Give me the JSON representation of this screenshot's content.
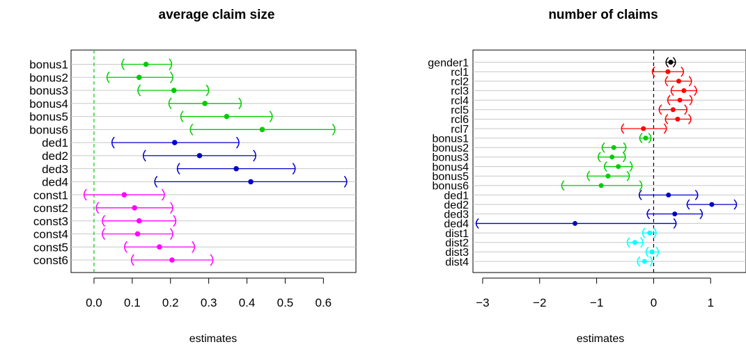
{
  "chart_data": [
    {
      "type": "forest",
      "title": "average claim size",
      "xlabel": "estimates",
      "ylabel": "",
      "xlim": [
        -0.06,
        0.685
      ],
      "xticks": [
        "0.0",
        "0.1",
        "0.2",
        "0.3",
        "0.4",
        "0.5",
        "0.6"
      ],
      "xtick_values": [
        0.0,
        0.1,
        0.2,
        0.3,
        0.4,
        0.5,
        0.6
      ],
      "reference_line": {
        "x": 0,
        "style": "dashed",
        "color": "#00cc00"
      },
      "grid": "horizontal",
      "series": [
        {
          "color": "#00cc00",
          "points": [
            {
              "label": "bonus1",
              "estimate": 0.136,
              "lower": 0.072,
              "upper": 0.204
            },
            {
              "label": "bonus2",
              "estimate": 0.118,
              "lower": 0.033,
              "upper": 0.207
            },
            {
              "label": "bonus3",
              "estimate": 0.209,
              "lower": 0.114,
              "upper": 0.301
            },
            {
              "label": "bonus4",
              "estimate": 0.29,
              "lower": 0.195,
              "upper": 0.386
            },
            {
              "label": "bonus5",
              "estimate": 0.347,
              "lower": 0.226,
              "upper": 0.467
            },
            {
              "label": "bonus6",
              "estimate": 0.44,
              "lower": 0.251,
              "upper": 0.631
            }
          ]
        },
        {
          "color": "#0000cc",
          "points": [
            {
              "label": "ded1",
              "estimate": 0.211,
              "lower": 0.046,
              "upper": 0.38
            },
            {
              "label": "ded2",
              "estimate": 0.276,
              "lower": 0.128,
              "upper": 0.424
            },
            {
              "label": "ded3",
              "estimate": 0.372,
              "lower": 0.217,
              "upper": 0.527
            },
            {
              "label": "ded4",
              "estimate": 0.41,
              "lower": 0.158,
              "upper": 0.662
            }
          ]
        },
        {
          "color": "#ff00ff",
          "points": [
            {
              "label": "const1",
              "estimate": 0.079,
              "lower": -0.027,
              "upper": 0.185
            },
            {
              "label": "const2",
              "estimate": 0.106,
              "lower": 0.005,
              "upper": 0.207
            },
            {
              "label": "const3",
              "estimate": 0.118,
              "lower": 0.021,
              "upper": 0.215
            },
            {
              "label": "const4",
              "estimate": 0.114,
              "lower": 0.021,
              "upper": 0.207
            },
            {
              "label": "const5",
              "estimate": 0.171,
              "lower": 0.079,
              "upper": 0.264
            },
            {
              "label": "const6",
              "estimate": 0.204,
              "lower": 0.097,
              "upper": 0.312
            }
          ]
        }
      ]
    },
    {
      "type": "forest",
      "title": "number of claims",
      "xlabel": "estimates",
      "ylabel": "",
      "xlim": [
        -3.17,
        1.62
      ],
      "xticks": [
        "−3",
        "−2",
        "−1",
        "0",
        "1"
      ],
      "xtick_values": [
        -3,
        -2,
        -1,
        0,
        1
      ],
      "reference_line": {
        "x": 0,
        "style": "dashed",
        "color": "#000000"
      },
      "grid": "horizontal",
      "series": [
        {
          "color": "#000000",
          "points": [
            {
              "label": "gender1",
              "estimate": 0.3,
              "lower": 0.21,
              "upper": 0.39
            }
          ]
        },
        {
          "color": "#ff0000",
          "points": [
            {
              "label": "rcl1",
              "estimate": 0.25,
              "lower": -0.03,
              "upper": 0.53
            },
            {
              "label": "rcl2",
              "estimate": 0.44,
              "lower": 0.2,
              "upper": 0.67
            },
            {
              "label": "rcl3",
              "estimate": 0.53,
              "lower": 0.3,
              "upper": 0.76
            },
            {
              "label": "rcl4",
              "estimate": 0.46,
              "lower": 0.24,
              "upper": 0.68
            },
            {
              "label": "rcl5",
              "estimate": 0.34,
              "lower": 0.09,
              "upper": 0.59
            },
            {
              "label": "rcl6",
              "estimate": 0.42,
              "lower": 0.2,
              "upper": 0.66
            },
            {
              "label": "rcl7",
              "estimate": -0.18,
              "lower": -0.57,
              "upper": 0.23
            }
          ]
        },
        {
          "color": "#00cc00",
          "points": [
            {
              "label": "bonus1",
              "estimate": -0.14,
              "lower": -0.25,
              "upper": -0.04
            },
            {
              "label": "bonus2",
              "estimate": -0.7,
              "lower": -0.91,
              "upper": -0.48
            },
            {
              "label": "bonus3",
              "estimate": -0.73,
              "lower": -0.98,
              "upper": -0.49
            },
            {
              "label": "bonus4",
              "estimate": -0.62,
              "lower": -0.87,
              "upper": -0.37
            },
            {
              "label": "bonus5",
              "estimate": -0.8,
              "lower": -1.17,
              "upper": -0.42
            },
            {
              "label": "bonus6",
              "estimate": -0.92,
              "lower": -1.62,
              "upper": -0.2
            }
          ]
        },
        {
          "color": "#0000cc",
          "points": [
            {
              "label": "ded1",
              "estimate": 0.26,
              "lower": -0.26,
              "upper": 0.78
            },
            {
              "label": "ded2",
              "estimate": 1.02,
              "lower": 0.58,
              "upper": 1.46
            },
            {
              "label": "ded3",
              "estimate": 0.37,
              "lower": -0.12,
              "upper": 0.86
            },
            {
              "label": "ded4",
              "estimate": -1.38,
              "lower": -3.12,
              "upper": 0.4
            }
          ]
        },
        {
          "color": "#00ffff",
          "points": [
            {
              "label": "dist1",
              "estimate": -0.07,
              "lower": -0.2,
              "upper": 0.05
            },
            {
              "label": "dist2",
              "estimate": -0.33,
              "lower": -0.47,
              "upper": -0.18
            },
            {
              "label": "dist3",
              "estimate": -0.03,
              "lower": -0.14,
              "upper": 0.09
            },
            {
              "label": "dist4",
              "estimate": -0.16,
              "lower": -0.29,
              "upper": -0.02
            }
          ]
        }
      ]
    }
  ]
}
